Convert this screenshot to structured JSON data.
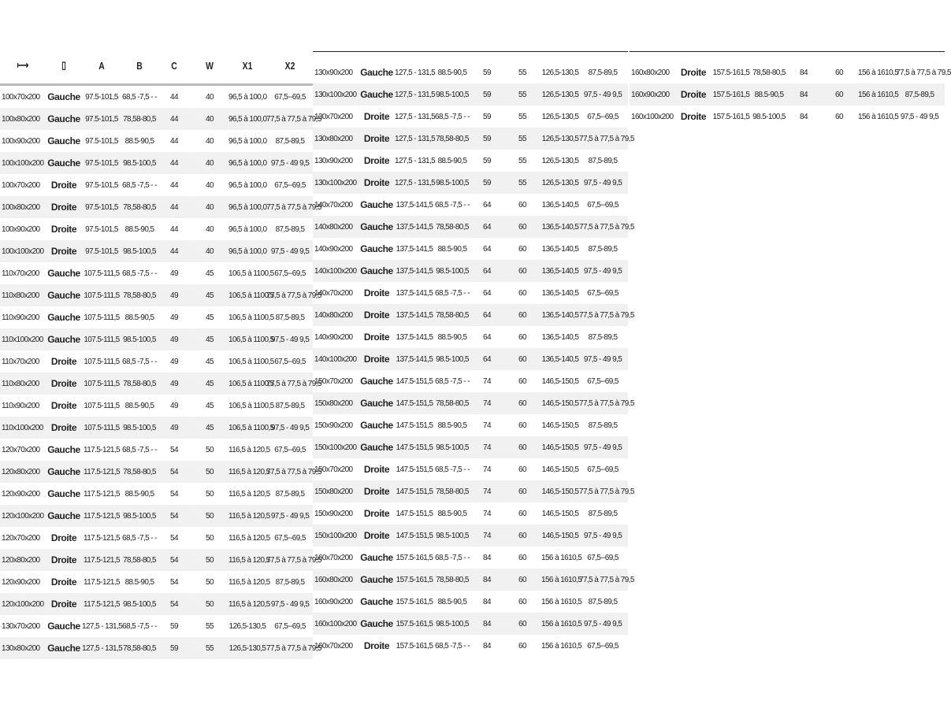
{
  "header": {
    "icons": [
      "width-arrows-icon",
      "door-icon"
    ],
    "width_icon": "⟼",
    "door_icon": "▯",
    "columns": [
      "A",
      "B",
      "C",
      "W",
      "X1",
      "X2"
    ]
  },
  "panels": [
    [
      [
        "100x70x200",
        "Gauche",
        "97.5-101,5",
        "68,5 -7,5 - -",
        "44",
        "40",
        "96,5 à 100,0",
        "67,5--69,5"
      ],
      [
        "100x80x200",
        "Gauche",
        "97.5-101,5",
        "78,58-80,5",
        "44",
        "40",
        "96,5 à 100,0",
        "77,5 à 77,5 à 79,5"
      ],
      [
        "100x90x200",
        "Gauche",
        "97.5-101,5",
        "88.5-90,5",
        "44",
        "40",
        "96,5 à 100,0",
        "87,5-89,5"
      ],
      [
        "100x100x200",
        "Gauche",
        "97.5-101,5",
        "98.5-100,5",
        "44",
        "40",
        "96,5 à 100,0",
        "97,5 - 49 9,5"
      ],
      [
        "100x70x200",
        "Droite",
        "97.5-101,5",
        "68,5 -7,5 - -",
        "44",
        "40",
        "96,5 à 100,0",
        "67,5--69,5"
      ],
      [
        "100x80x200",
        "Droite",
        "97.5-101,5",
        "78,58-80,5",
        "44",
        "40",
        "96,5 à 100,0",
        "77,5 à 77,5 à 79,5"
      ],
      [
        "100x90x200",
        "Droite",
        "97.5-101,5",
        "88.5-90,5",
        "44",
        "40",
        "96,5 à 100,0",
        "87,5-89,5"
      ],
      [
        "100x100x200",
        "Droite",
        "97.5-101,5",
        "98.5-100,5",
        "44",
        "40",
        "96,5 à 100,0",
        "97,5 - 49 9,5"
      ],
      [
        "110x70x200",
        "Gauche",
        "107.5-111,5",
        "68,5 -7,5 - -",
        "49",
        "45",
        "106,5 à 1100,5",
        "67,5--69,5"
      ],
      [
        "110x80x200",
        "Gauche",
        "107.5-111,5",
        "78,58-80,5",
        "49",
        "45",
        "106,5 à 1100,5",
        "77,5 à 77,5 à 79,5"
      ],
      [
        "110x90x200",
        "Gauche",
        "107.5-111,5",
        "88.5-90,5",
        "49",
        "45",
        "106,5 à 1100,5",
        "87,5-89,5"
      ],
      [
        "110x100x200",
        "Gauche",
        "107.5-111,5",
        "98.5-100,5",
        "49",
        "45",
        "106,5 à 1100,5",
        "97,5 - 49 9,5"
      ],
      [
        "110x70x200",
        "Droite",
        "107.5-111,5",
        "68,5 -7,5 - -",
        "49",
        "45",
        "106,5 à 1100,5",
        "67,5--69,5"
      ],
      [
        "110x80x200",
        "Droite",
        "107.5-111,5",
        "78,58-80,5",
        "49",
        "45",
        "106,5 à 1100,5",
        "77,5 à 77,5 à 79,5"
      ],
      [
        "110x90x200",
        "Droite",
        "107.5-111,5",
        "88.5-90,5",
        "49",
        "45",
        "106,5 à 1100,5",
        "87,5-89,5"
      ],
      [
        "110x100x200",
        "Droite",
        "107.5-111,5",
        "98.5-100,5",
        "49",
        "45",
        "106,5 à 1100,5",
        "97,5 - 49 9,5"
      ],
      [
        "120x70x200",
        "Gauche",
        "117.5-121,5",
        "68,5 -7,5 - -",
        "54",
        "50",
        "116,5 à 120,5",
        "67,5--69,5"
      ],
      [
        "120x80x200",
        "Gauche",
        "117.5-121,5",
        "78,58-80,5",
        "54",
        "50",
        "116,5 à 120,5",
        "77,5 à 77,5 à 79,5"
      ],
      [
        "120x90x200",
        "Gauche",
        "117.5-121,5",
        "88.5-90,5",
        "54",
        "50",
        "116,5 à 120,5",
        "87,5-89,5"
      ],
      [
        "120x100x200",
        "Gauche",
        "117.5-121,5",
        "98.5-100,5",
        "54",
        "50",
        "116,5 à 120,5",
        "97,5 - 49 9,5"
      ],
      [
        "120x70x200",
        "Droite",
        "117.5-121,5",
        "68,5 -7,5 - -",
        "54",
        "50",
        "116,5 à 120,5",
        "67,5--69,5"
      ],
      [
        "120x80x200",
        "Droite",
        "117.5-121,5",
        "78,58-80,5",
        "54",
        "50",
        "116,5 à 120,5",
        "77,5 à 77,5 à 79,5"
      ],
      [
        "120x90x200",
        "Droite",
        "117.5-121,5",
        "88.5-90,5",
        "54",
        "50",
        "116,5 à 120,5",
        "87,5-89,5"
      ],
      [
        "120x100x200",
        "Droite",
        "117.5-121,5",
        "98.5-100,5",
        "54",
        "50",
        "116,5 à 120,5",
        "97,5 - 49 9,5"
      ],
      [
        "130x70x200",
        "Gauche",
        "127,5 - 131,5",
        "68,5 -7,5 - -",
        "59",
        "55",
        "126,5-130,5",
        "67,5--69,5"
      ],
      [
        "130x80x200",
        "Gauche",
        "127,5 - 131,5",
        "78,58-80,5",
        "59",
        "55",
        "126,5-130,5",
        "77,5 à 77,5 à 79,5"
      ]
    ],
    [
      [
        "130x90x200",
        "Gauche",
        "127,5 - 131,5",
        "88.5-90,5",
        "59",
        "55",
        "126,5-130,5",
        "87,5-89,5"
      ],
      [
        "130x100x200",
        "Gauche",
        "127,5 - 131,5",
        "98.5-100,5",
        "59",
        "55",
        "126,5-130,5",
        "97,5 - 49 9,5"
      ],
      [
        "130x70x200",
        "Droite",
        "127,5 - 131,5",
        "68,5 -7,5 - -",
        "59",
        "55",
        "126,5-130,5",
        "67,5--69,5"
      ],
      [
        "130x80x200",
        "Droite",
        "127,5 - 131,5",
        "78,58-80,5",
        "59",
        "55",
        "126,5-130,5",
        "77,5 à 77,5 à 79,5"
      ],
      [
        "130x90x200",
        "Droite",
        "127,5 - 131,5",
        "88.5-90,5",
        "59",
        "55",
        "126,5-130,5",
        "87,5-89,5"
      ],
      [
        "130x100x200",
        "Droite",
        "127,5 - 131,5",
        "98.5-100,5",
        "59",
        "55",
        "126,5-130,5",
        "97,5 - 49 9,5"
      ],
      [
        "140x70x200",
        "Gauche",
        "137,5-141,5",
        "68,5 -7,5 - -",
        "64",
        "60",
        "136,5-140,5",
        "67,5--69,5"
      ],
      [
        "140x80x200",
        "Gauche",
        "137,5-141,5",
        "78,58-80,5",
        "64",
        "60",
        "136,5-140,5",
        "77,5 à 77,5 à 79,5"
      ],
      [
        "140x90x200",
        "Gauche",
        "137,5-141,5",
        "88.5-90,5",
        "64",
        "60",
        "136,5-140,5",
        "87,5-89,5"
      ],
      [
        "140x100x200",
        "Gauche",
        "137,5-141,5",
        "98.5-100,5",
        "64",
        "60",
        "136,5-140,5",
        "97,5 - 49 9,5"
      ],
      [
        "140x70x200",
        "Droite",
        "137,5-141,5",
        "68,5 -7,5 - -",
        "64",
        "60",
        "136,5-140,5",
        "67,5--69,5"
      ],
      [
        "140x80x200",
        "Droite",
        "137,5-141,5",
        "78,58-80,5",
        "64",
        "60",
        "136,5-140,5",
        "77,5 à 77,5 à 79,5"
      ],
      [
        "140x90x200",
        "Droite",
        "137,5-141,5",
        "88.5-90,5",
        "64",
        "60",
        "136,5-140,5",
        "87,5-89,5"
      ],
      [
        "140x100x200",
        "Droite",
        "137,5-141,5",
        "98.5-100,5",
        "64",
        "60",
        "136,5-140,5",
        "97,5 - 49 9,5"
      ],
      [
        "150x70x200",
        "Gauche",
        "147.5-151,5",
        "68,5 -7,5 - -",
        "74",
        "60",
        "146,5-150,5",
        "67,5--69,5"
      ],
      [
        "150x80x200",
        "Gauche",
        "147.5-151,5",
        "78,58-80,5",
        "74",
        "60",
        "146,5-150,5",
        "77,5 à 77,5 à 79,5"
      ],
      [
        "150x90x200",
        "Gauche",
        "147.5-151,5",
        "88.5-90,5",
        "74",
        "60",
        "146,5-150,5",
        "87,5-89,5"
      ],
      [
        "150x100x200",
        "Gauche",
        "147.5-151,5",
        "98.5-100,5",
        "74",
        "60",
        "146,5-150,5",
        "97,5 - 49 9,5"
      ],
      [
        "150x70x200",
        "Droite",
        "147.5-151,5",
        "68,5 -7,5 - -",
        "74",
        "60",
        "146,5-150,5",
        "67,5--69,5"
      ],
      [
        "150x80x200",
        "Droite",
        "147.5-151,5",
        "78,58-80,5",
        "74",
        "60",
        "146,5-150,5",
        "77,5 à 77,5 à 79,5"
      ],
      [
        "150x90x200",
        "Droite",
        "147.5-151,5",
        "88.5-90,5",
        "74",
        "60",
        "146,5-150,5",
        "87,5-89,5"
      ],
      [
        "150x100x200",
        "Droite",
        "147.5-151,5",
        "98.5-100,5",
        "74",
        "60",
        "146,5-150,5",
        "97,5 - 49 9,5"
      ],
      [
        "160x70x200",
        "Gauche",
        "157.5-161,5",
        "68,5 -7,5 - -",
        "84",
        "60",
        "156 à 1610,5",
        "67,5--69,5"
      ],
      [
        "160x80x200",
        "Gauche",
        "157.5-161,5",
        "78,58-80,5",
        "84",
        "60",
        "156 à 1610,5",
        "77,5 à 77,5 à 79,5"
      ],
      [
        "160x90x200",
        "Gauche",
        "157.5-161,5",
        "88.5-90,5",
        "84",
        "60",
        "156 à 1610,5",
        "87,5-89,5"
      ],
      [
        "160x100x200",
        "Gauche",
        "157.5-161,5",
        "98.5-100,5",
        "84",
        "60",
        "156 à 1610,5",
        "97,5 - 49 9,5"
      ],
      [
        "160x70x200",
        "Droite",
        "157.5-161,5",
        "68,5 -7,5 - -",
        "84",
        "60",
        "156 à 1610,5",
        "67,5--69,5"
      ]
    ],
    [
      [
        "160x80x200",
        "Droite",
        "157.5-161,5",
        "78,58-80,5",
        "84",
        "60",
        "156 à 1610,5",
        "77,5 à 77,5 à 79,5"
      ],
      [
        "160x90x200",
        "Droite",
        "157.5-161,5",
        "88.5-90,5",
        "84",
        "60",
        "156 à 1610,5",
        "87,5-89,5"
      ],
      [
        "160x100x200",
        "Droite",
        "157.5-161,5",
        "98.5-100,5",
        "84",
        "60",
        "156 à 1610,5",
        "97,5 - 49 9,5"
      ]
    ]
  ]
}
